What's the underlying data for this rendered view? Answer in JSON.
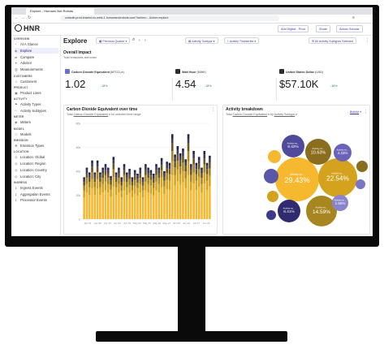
{
  "browser": {
    "tab_title": "Explore - Humans Not Robots",
    "url": "console.prod-shared-eu-west-1.humansnotrobots.com/?series=...&view=explore"
  },
  "app": {
    "logo_text": "HNR",
    "header_buttons": [
      "Add Digital - Prod",
      "Share",
      "Admin Scholar"
    ]
  },
  "sidebar": {
    "sections": [
      {
        "label": "OVERVIEW",
        "items": [
          "At A Glance",
          "Explore",
          "Compare",
          "Advisor",
          "Measurements"
        ]
      },
      {
        "label": "CUSTOMERS",
        "items": [
          "Customers"
        ]
      },
      {
        "label": "PRODUCT",
        "items": [
          "Product Lines"
        ]
      },
      {
        "label": "ACTIVITY",
        "items": [
          "Activity Types",
          "Activity Subtypes"
        ]
      },
      {
        "label": "METER",
        "items": [
          "Meters"
        ]
      },
      {
        "label": "MODEL",
        "items": [
          "Models"
        ]
      },
      {
        "label": "EMISSION",
        "items": [
          "Emission Types"
        ]
      },
      {
        "label": "LOCATION",
        "items": [
          "Location: Global",
          "Location: Region",
          "Location: Country",
          "Location: City"
        ]
      },
      {
        "label": "INGRESS",
        "items": [
          "Ingress Events",
          "Aggregation Events",
          "Processor Events"
        ]
      }
    ],
    "active_item": "Explore"
  },
  "toolbar": {
    "title": "Explore",
    "period": "Previous Quarter",
    "filter1": "Activity Subtype",
    "filter2": "Activity Timeseries",
    "selection": "All Activity Subtypes Selected",
    "actions": "Actions"
  },
  "overall": {
    "title": "Overall Impact",
    "subtitle": "Total emissions and costs",
    "kpis": [
      {
        "label": "Carbon Dioxide Equivalent",
        "unit": "(MTCO₂e)",
        "value": "1.02",
        "delta": "-18%"
      },
      {
        "label": "Watt Hour",
        "unit": "(MWh)",
        "value": "4.54",
        "delta": "-18%"
      },
      {
        "label": "United States Dollar",
        "unit": "(USD)",
        "value": "$57.10K",
        "delta": "-18%"
      }
    ]
  },
  "timeseries": {
    "title": "Carbon Dioxide Equivalent over time",
    "subtitle_prefix": "Total",
    "subtitle_metric": "Carbon Dioxide Equivalent",
    "subtitle_suffix": "for selected time range"
  },
  "breakdown": {
    "title": "Activity breakdown",
    "subtitle_prefix": "Total",
    "subtitle_metric": "Carbon Dioxide Equivalent",
    "subtitle_mid": "by",
    "subtitle_group": "Activity Subtype",
    "view": "Bubble",
    "bubbles": [
      {
        "label": "Activity su...",
        "pct": "29.43%",
        "color": "#f5b82e"
      },
      {
        "label": "Activity su...",
        "pct": "22.54%",
        "color": "#d4a21c"
      },
      {
        "label": "Activity su...",
        "pct": "14.59%",
        "color": "#a8861f"
      },
      {
        "label": "Activity su...",
        "pct": "10.63%",
        "color": "#8a6d1e"
      },
      {
        "label": "Activity su...",
        "pct": "8.42%",
        "color": "#4f4a9c"
      },
      {
        "label": "Activity su...",
        "pct": "8.41%",
        "color": "#2f2b6e"
      },
      {
        "label": "Activity su...",
        "pct": "4.33%",
        "color": "#6a62b8"
      },
      {
        "label": "Activity su...",
        "pct": "1.58%",
        "color": "#8a84cc"
      }
    ],
    "small_colors": [
      "#f5b82e",
      "#5a56a8",
      "#d4a21c",
      "#8a6d1e",
      "#7a74c4",
      "#3d3a8a"
    ]
  },
  "chart_data": {
    "type": "bar",
    "stacked": true,
    "bar_count": 48,
    "y_ticks": [
      "80k",
      "60k",
      "40k",
      "20k",
      "0"
    ],
    "x_ticks": [
      "Apr 01",
      "Apr 08",
      "Apr 15",
      "Apr 22",
      "Apr 29",
      "May 06",
      "May 13",
      "May 20",
      "May 27",
      "Jun 03",
      "Jun 10",
      "Jun 17",
      "Jun 24"
    ],
    "totals": [
      35,
      43,
      39,
      49,
      39,
      49,
      39,
      43,
      46,
      43,
      36,
      52,
      39,
      43,
      35,
      46,
      39,
      42,
      35,
      41,
      38,
      43,
      35,
      46,
      43,
      41,
      38,
      46,
      43,
      51,
      40,
      48,
      47,
      71,
      54,
      61,
      55,
      59,
      50,
      71,
      46,
      57,
      47,
      52,
      43,
      57,
      47,
      53
    ],
    "layer_fractions": [
      0.52,
      0.16,
      0.12,
      0.09,
      0.06,
      0.05
    ],
    "layer_colors": [
      "#f5b82e",
      "#d4a21c",
      "#a8861f",
      "#6b5620",
      "#3e3a5e",
      "#25234a"
    ]
  }
}
